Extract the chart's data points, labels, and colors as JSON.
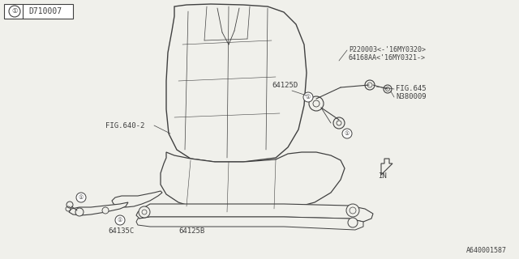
{
  "bg_color": "#f0f0eb",
  "line_color": "#404040",
  "title_box_label": "D710007",
  "part_labels": {
    "P220003": "P220003<-'16MY0320>",
    "64168AA": "64168AA<'16MY0321->",
    "64125D": "64125D",
    "FIG645": "FIG.645",
    "N380009": "N380009",
    "FIG640": "FIG.640-2",
    "64135C": "64135C",
    "64125B": "64125B"
  },
  "footer_label": "A640001587",
  "font_size": 6.5,
  "small_font": 6.0,
  "lw": 0.7
}
